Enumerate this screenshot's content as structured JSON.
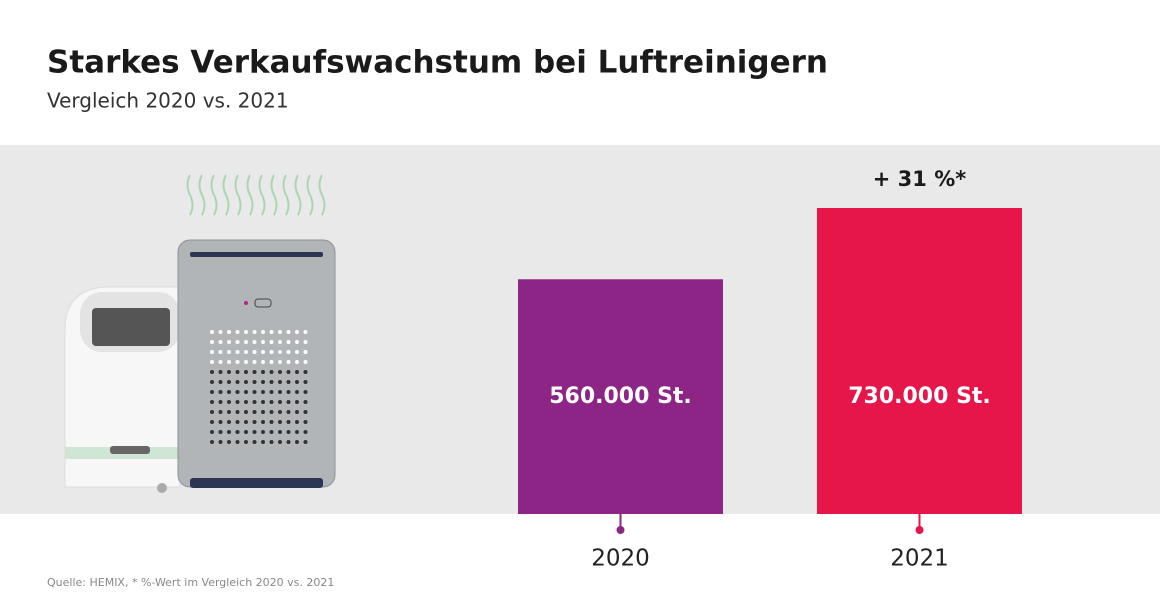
{
  "chart_data": {
    "type": "bar",
    "title": "Starkes Verkaufswachstum bei Luftreinigern",
    "subtitle": "Vergleich 2020 vs. 2021",
    "categories": [
      "2020",
      "2021"
    ],
    "values": [
      560000,
      730000
    ],
    "value_labels": [
      "560.000 St.",
      "730.000 St."
    ],
    "colors": [
      "#8c2585",
      "#e6164b"
    ],
    "annotation": "+ 31 %*",
    "source": "Quelle: HEMIX, * %-Wert im Vergleich 2020 vs. 2021"
  }
}
